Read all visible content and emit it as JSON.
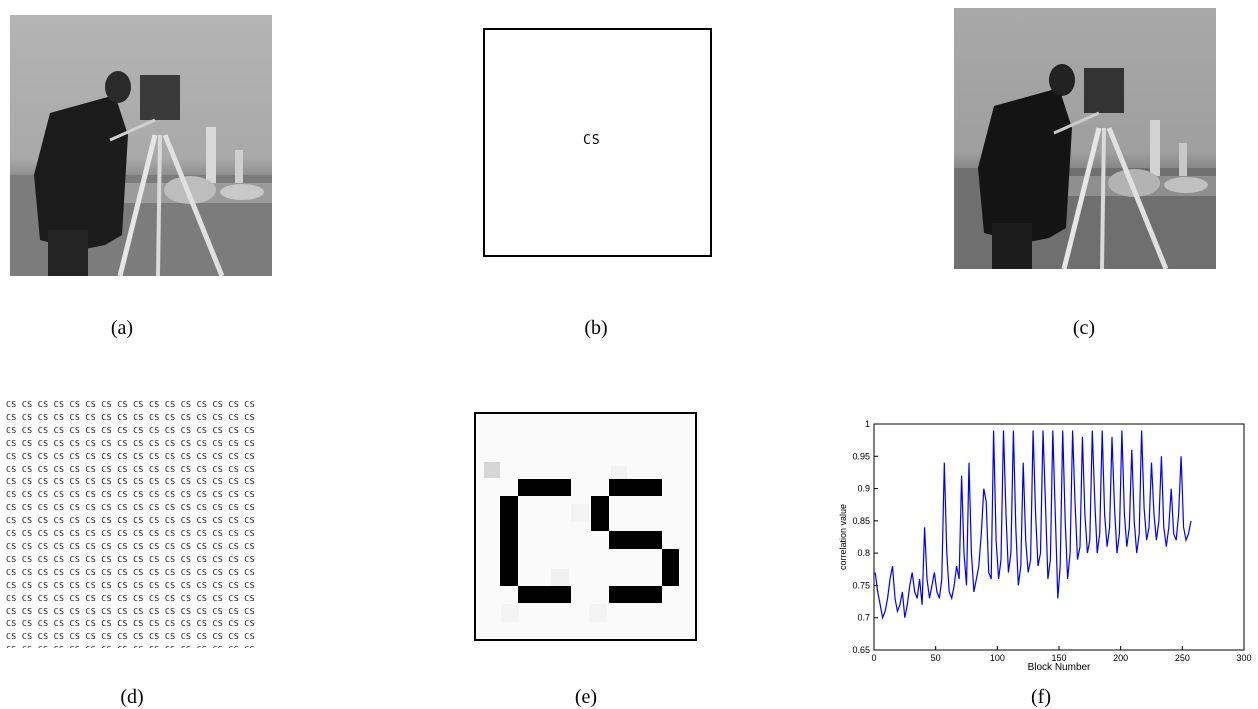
{
  "captions": {
    "a": "(a)",
    "b": "(b)",
    "c": "(c)",
    "d": "(d)",
    "e": "(e)",
    "f": "(f)"
  },
  "watermark_text": "CS",
  "tile": {
    "token": "CS",
    "rows": 20,
    "cols": 16
  },
  "chart_data": {
    "type": "line",
    "xlabel": "Block Number",
    "ylabel": "correlation value",
    "xlim": [
      0,
      300
    ],
    "ylim": [
      0.65,
      1
    ],
    "xticks": [
      0,
      50,
      100,
      150,
      200,
      250,
      300
    ],
    "yticks": [
      0.65,
      0.7,
      0.75,
      0.8,
      0.85,
      0.9,
      0.95,
      1
    ],
    "series_color": "#0000ff",
    "series": [
      {
        "x": [
          1,
          3,
          5,
          7,
          9,
          11,
          13,
          15,
          17,
          19,
          21,
          23,
          25,
          27,
          29,
          31,
          33,
          35,
          37,
          39,
          41,
          43,
          45,
          47,
          49,
          51,
          53,
          55,
          57,
          59,
          61,
          63,
          65,
          67,
          69,
          71,
          73,
          75,
          77,
          79,
          81,
          83,
          85,
          87,
          89,
          91,
          93,
          95,
          97,
          99,
          101,
          103,
          105,
          107,
          109,
          111,
          113,
          115,
          117,
          119,
          121,
          123,
          125,
          127,
          129,
          131,
          133,
          135,
          137,
          139,
          141,
          143,
          145,
          147,
          149,
          151,
          153,
          155,
          157,
          159,
          161,
          163,
          165,
          167,
          169,
          171,
          173,
          175,
          177,
          179,
          181,
          183,
          185,
          187,
          189,
          191,
          193,
          195,
          197,
          199,
          201,
          203,
          205,
          207,
          209,
          211,
          213,
          215,
          217,
          219,
          221,
          223,
          225,
          227,
          229,
          231,
          233,
          235,
          237,
          239,
          241,
          243,
          245,
          247,
          249,
          251,
          253,
          255,
          257
        ],
        "y": [
          0.77,
          0.74,
          0.72,
          0.7,
          0.71,
          0.73,
          0.76,
          0.78,
          0.73,
          0.71,
          0.72,
          0.74,
          0.7,
          0.72,
          0.75,
          0.77,
          0.74,
          0.73,
          0.76,
          0.72,
          0.84,
          0.76,
          0.73,
          0.75,
          0.77,
          0.74,
          0.73,
          0.76,
          0.94,
          0.8,
          0.74,
          0.73,
          0.75,
          0.78,
          0.76,
          0.92,
          0.8,
          0.75,
          0.94,
          0.8,
          0.74,
          0.76,
          0.78,
          0.83,
          0.9,
          0.88,
          0.77,
          0.76,
          0.99,
          0.82,
          0.76,
          0.79,
          0.99,
          0.86,
          0.77,
          0.8,
          0.99,
          0.84,
          0.75,
          0.78,
          0.94,
          0.82,
          0.77,
          0.79,
          0.99,
          0.86,
          0.78,
          0.8,
          0.99,
          0.88,
          0.76,
          0.79,
          0.99,
          0.86,
          0.73,
          0.78,
          0.99,
          0.85,
          0.76,
          0.8,
          0.99,
          0.88,
          0.79,
          0.81,
          0.98,
          0.86,
          0.8,
          0.82,
          0.99,
          0.88,
          0.8,
          0.83,
          0.99,
          0.86,
          0.81,
          0.84,
          0.98,
          0.87,
          0.8,
          0.83,
          0.99,
          0.86,
          0.81,
          0.84,
          0.96,
          0.85,
          0.8,
          0.83,
          0.99,
          0.87,
          0.82,
          0.84,
          0.94,
          0.86,
          0.82,
          0.85,
          0.95,
          0.84,
          0.81,
          0.84,
          0.9,
          0.83,
          0.82,
          0.86,
          0.95,
          0.84,
          0.82,
          0.83,
          0.85
        ]
      }
    ]
  }
}
